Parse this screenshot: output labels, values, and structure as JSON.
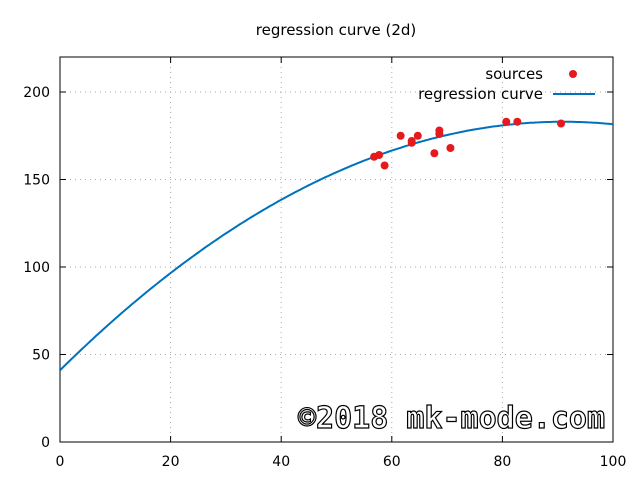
{
  "chart_data": {
    "type": "scatter",
    "title": "regression curve (2d)",
    "xlabel": "",
    "ylabel": "",
    "xlim": [
      0,
      100
    ],
    "ylim": [
      0,
      220
    ],
    "xticks": [
      0,
      20,
      40,
      60,
      80,
      100
    ],
    "yticks": [
      0,
      50,
      100,
      150,
      200
    ],
    "grid": true,
    "legend_position": "top-right",
    "series": [
      {
        "name": "sources",
        "kind": "points",
        "color": "#e41a1c",
        "x": [
          56.8,
          57.7,
          58.7,
          61.6,
          63.6,
          63.6,
          64.7,
          67.7,
          68.6,
          68.6,
          70.6,
          80.7,
          82.7,
          90.6
        ],
        "y": [
          163,
          164,
          158,
          175,
          172,
          171,
          175,
          165,
          178,
          176,
          168,
          183,
          183,
          182
        ]
      },
      {
        "name": "regression curve",
        "kind": "line",
        "color": "#0072bd",
        "coefficients": {
          "a": 41.0,
          "b": 3.121,
          "c": -0.01715
        }
      }
    ]
  },
  "watermark": "©2018 mk-mode.com"
}
